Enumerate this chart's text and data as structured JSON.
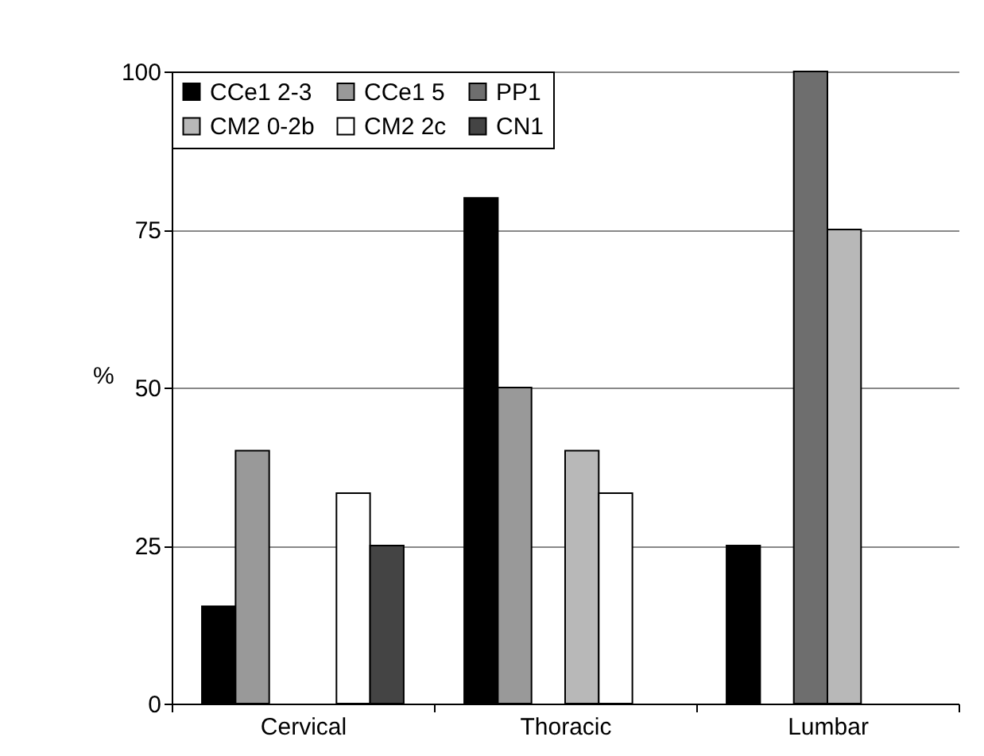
{
  "chart_data": {
    "type": "bar",
    "ylabel": "%",
    "categories": [
      "Cervical",
      "Thoracic",
      "Lumbar"
    ],
    "series": [
      {
        "name": "CCe1 2-3",
        "color": "#000000",
        "values": [
          15.4,
          80,
          25
        ]
      },
      {
        "name": "CCe1 5",
        "color": "#999999",
        "values": [
          40,
          50,
          null
        ]
      },
      {
        "name": "PP1",
        "color": "#6e6e6e",
        "values": [
          null,
          null,
          100
        ]
      },
      {
        "name": "CM2 0-2b",
        "color": "#b8b8b8",
        "values": [
          null,
          40,
          75
        ]
      },
      {
        "name": "CM2 2c",
        "color": "#ffffff",
        "values": [
          33.3,
          33.3,
          null
        ]
      },
      {
        "name": "CN1",
        "color": "#444444",
        "values": [
          25,
          null,
          null
        ]
      }
    ],
    "ylim": [
      0,
      100
    ],
    "yticks": [
      0,
      25,
      50,
      75,
      100
    ],
    "grid": "y",
    "legend": "top left"
  }
}
